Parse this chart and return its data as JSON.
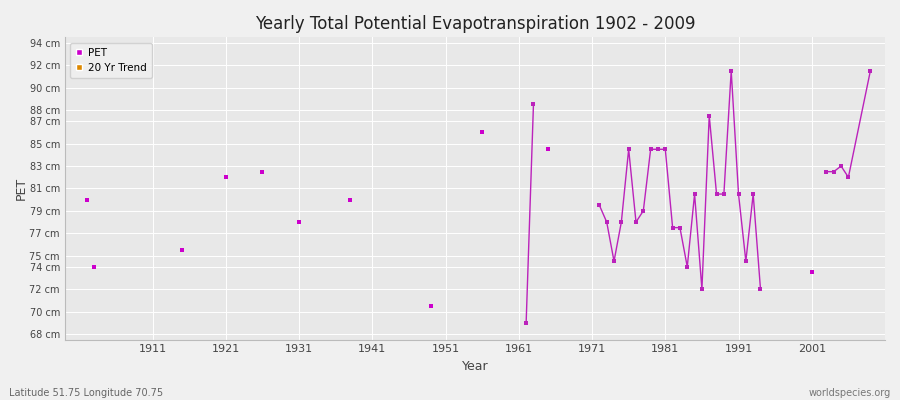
{
  "title": "Yearly Total Potential Evapotranspiration 1902 - 2009",
  "xlabel": "Year",
  "ylabel": "PET",
  "subtitle_left": "Latitude 51.75 Longitude 70.75",
  "subtitle_right": "worldspecies.org",
  "bg_color": "#f0f0f0",
  "plot_bg_color": "#e8e8e8",
  "grid_color": "#ffffff",
  "pet_color": "#cc00cc",
  "trend_color": "#bb22bb",
  "legend_trend_color": "#dd8800",
  "ylim_min": 67.5,
  "ylim_max": 94.5,
  "xlim_min": 1899,
  "xlim_max": 2011,
  "yticks": [
    68,
    70,
    72,
    74,
    75,
    77,
    79,
    81,
    83,
    85,
    87,
    88,
    90,
    92,
    94
  ],
  "ytick_labels": [
    "68 cm",
    "70 cm",
    "72 cm",
    "74 cm",
    "75 cm",
    "77 cm",
    "79 cm",
    "81 cm",
    "83 cm",
    "85 cm",
    "87 cm",
    "88 cm",
    "90 cm",
    "92 cm",
    "94 cm"
  ],
  "xticks": [
    1911,
    1921,
    1931,
    1941,
    1951,
    1961,
    1971,
    1981,
    1991,
    2001
  ],
  "pet_scatter_years": [
    1902,
    1903,
    1915,
    1921,
    1926,
    1931,
    1938,
    1949,
    1956,
    1965,
    1975
  ],
  "pet_scatter_values": [
    80.0,
    74.0,
    75.5,
    82.0,
    82.5,
    78.0,
    80.0,
    70.5,
    86.0,
    84.5,
    78.0
  ],
  "trend_segments": [
    {
      "years": [
        1962,
        1963
      ],
      "values": [
        69.0,
        88.5
      ]
    },
    {
      "years": [
        1972,
        1973,
        1974,
        1975,
        1976,
        1977,
        1978,
        1979,
        1980,
        1981,
        1982,
        1983,
        1984,
        1985,
        1986,
        1987,
        1988,
        1989,
        1990,
        1991,
        1992,
        1993,
        1994
      ],
      "values": [
        79.5,
        78.0,
        74.5,
        78.0,
        84.5,
        78.0,
        79.0,
        84.5,
        84.5,
        84.5,
        77.5,
        77.5,
        74.0,
        80.5,
        72.0,
        87.5,
        80.5,
        80.5,
        91.5,
        80.5,
        74.5,
        80.5,
        72.0
      ]
    },
    {
      "years": [
        2003,
        2004,
        2005,
        2006,
        2009
      ],
      "values": [
        82.5,
        82.5,
        83.0,
        82.0,
        91.5
      ]
    }
  ]
}
